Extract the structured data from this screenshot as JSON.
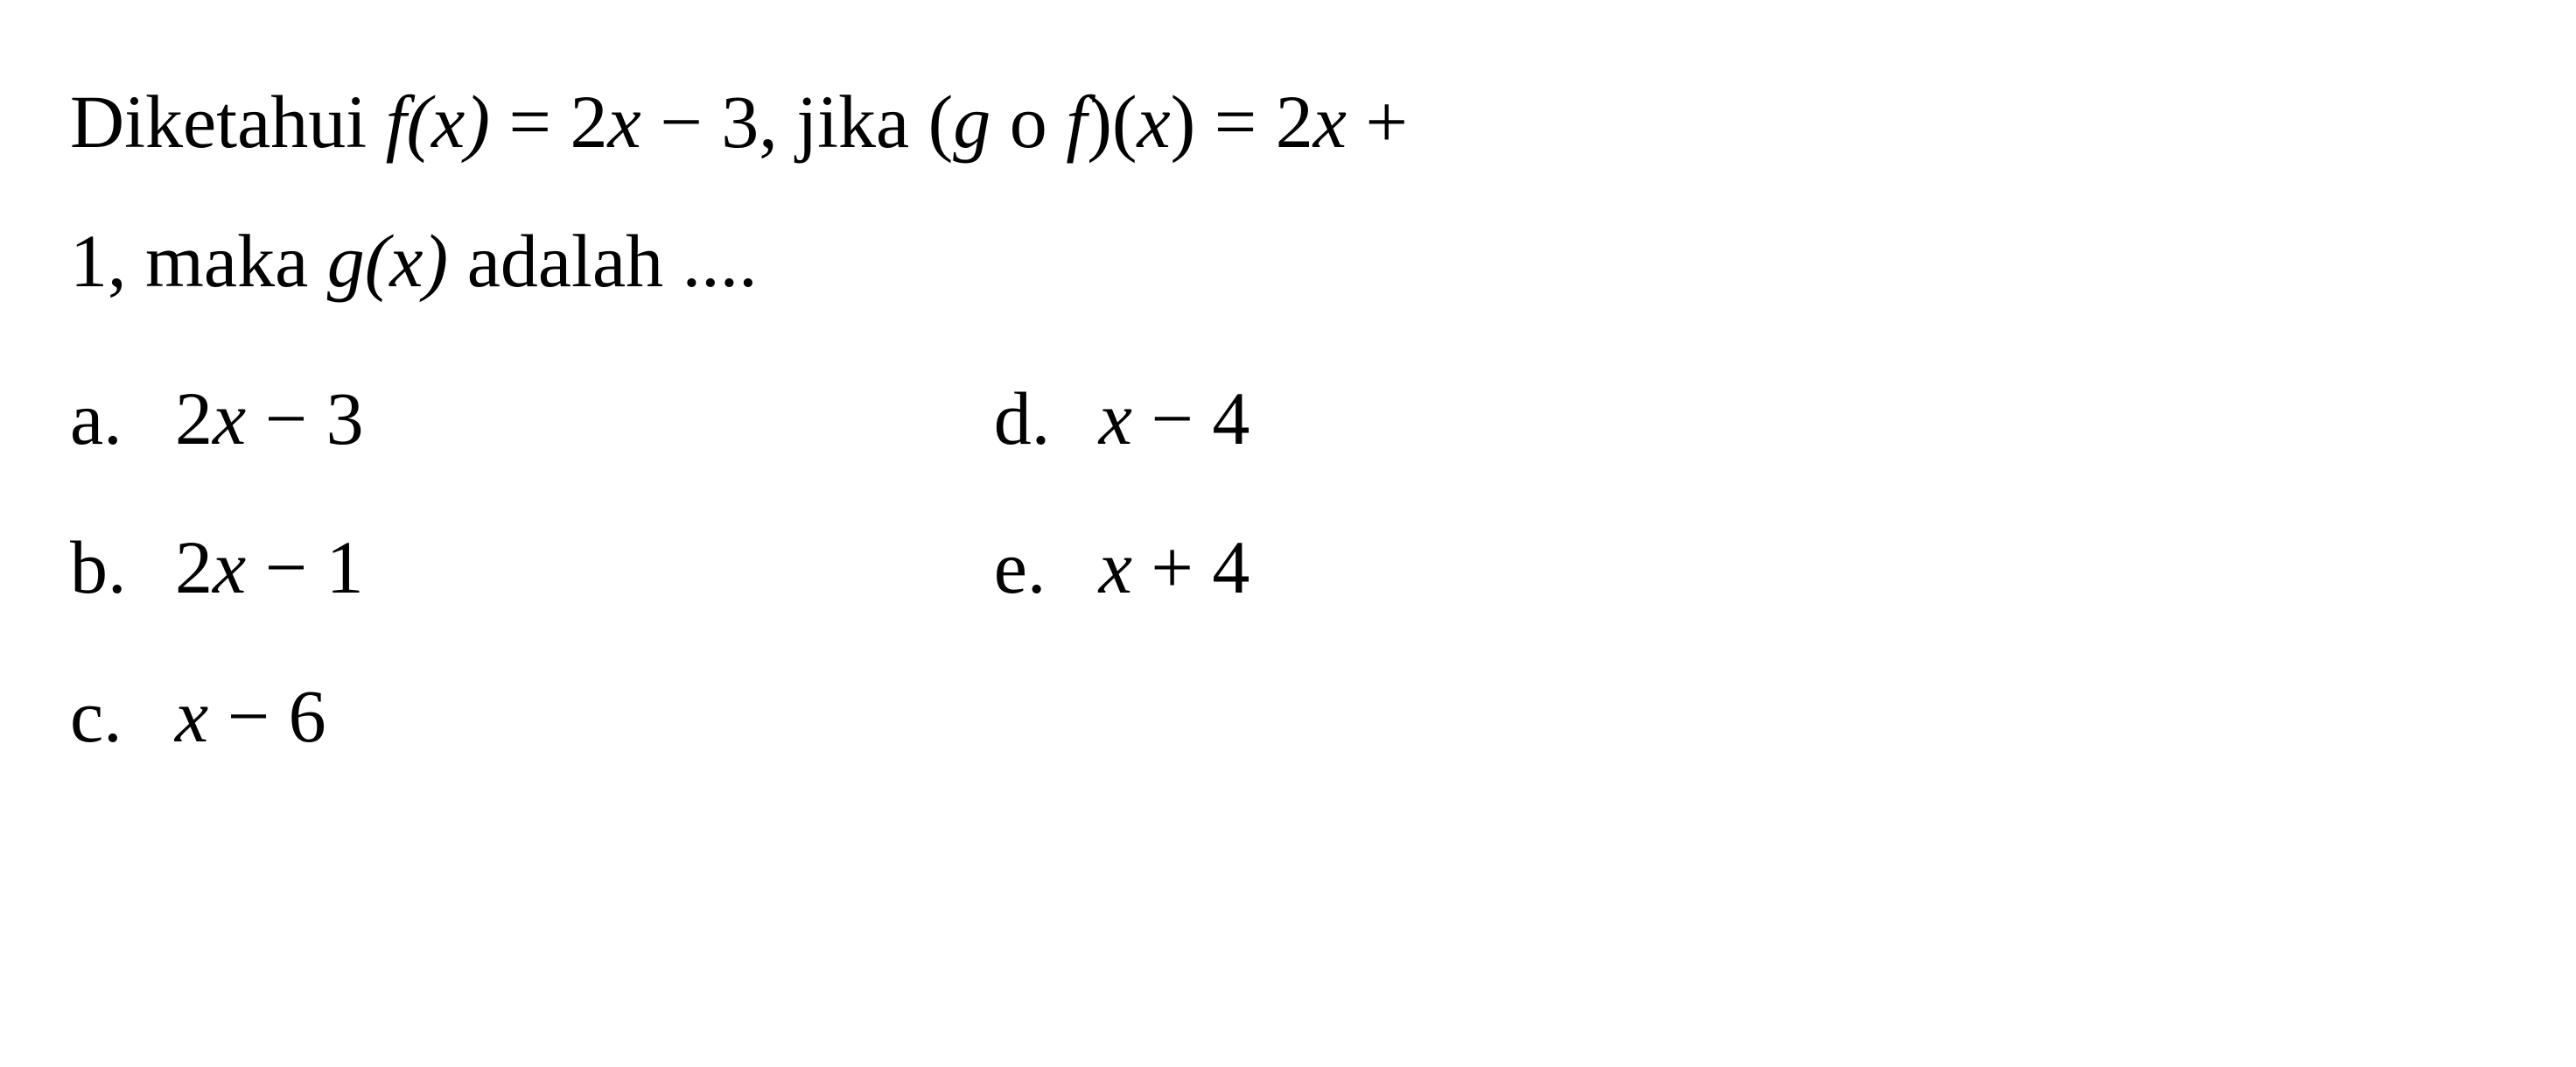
{
  "question": {
    "line1_part1": "Diketahui ",
    "line1_fx": "f",
    "line1_x1": "(x)",
    "line1_eq1": " = 2",
    "line1_x2": "x",
    "line1_minus3": " − 3, jika (",
    "line1_g": "g",
    "line1_o": " o ",
    "line1_f2": "f",
    "line1_paren": ")(",
    "line1_x3": "x",
    "line1_eq2": ") = 2",
    "line1_x4": "x",
    "line1_plus": " +",
    "line2_one": "1, maka ",
    "line2_g": "g",
    "line2_x": "(x)",
    "line2_rest": " adalah ...."
  },
  "options": {
    "a": {
      "letter": "a.",
      "prefix": "2",
      "var": "x",
      "suffix": " − 3"
    },
    "b": {
      "letter": "b.",
      "prefix": "2",
      "var": "x",
      "suffix": " − 1"
    },
    "c": {
      "letter": "c.",
      "prefix": "",
      "var": "x",
      "suffix": " − 6"
    },
    "d": {
      "letter": "d.",
      "prefix": "",
      "var": "x",
      "suffix": " − 4"
    },
    "e": {
      "letter": "e.",
      "prefix": "",
      "var": "x",
      "suffix": " + 4"
    }
  },
  "styles": {
    "font_size_pt": 86,
    "line_height": 1.85,
    "text_color": "#000000",
    "background_color": "#ffffff",
    "font_family": "Times New Roman"
  }
}
